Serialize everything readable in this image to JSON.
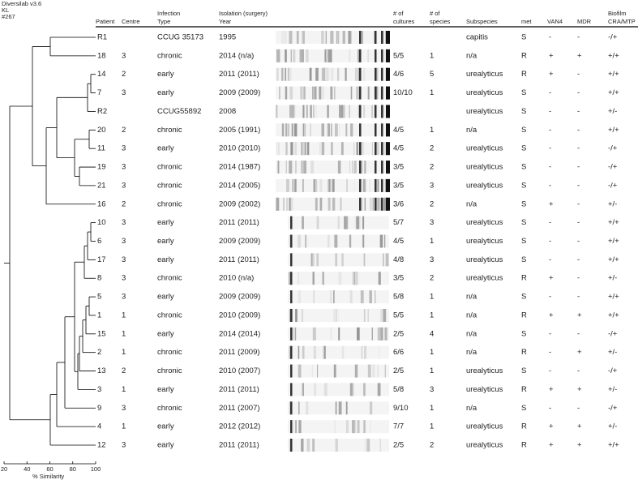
{
  "header": {
    "software": [
      "Diversilab v3.6",
      "KL",
      "#267"
    ],
    "columns": [
      [
        "Patient"
      ],
      [
        "Centre"
      ],
      [
        "Infection",
        "Type"
      ],
      [
        "Isolation (surgery)",
        "Year"
      ],
      [
        "# of",
        "cultures"
      ],
      [
        "# of",
        "species"
      ],
      [
        "Subspecies"
      ],
      [
        "met"
      ],
      [
        "VAN4"
      ],
      [
        "MDR"
      ],
      [
        "Biofilm",
        "CRA/MTP"
      ]
    ]
  },
  "table": {
    "rows": [
      [
        "R1",
        null,
        "CCUG 35173",
        "1995",
        null,
        null,
        "capitis",
        "S",
        "-",
        "-",
        "-/+"
      ],
      [
        "18",
        "3",
        "chronic",
        "2014 (n/a)",
        "5/5",
        "1",
        "n/a",
        "R",
        "+",
        "+",
        "+/+"
      ],
      [
        "14",
        "2",
        "early",
        "2011 (2011)",
        "4/6",
        "5",
        "urealyticus",
        "R",
        "+",
        "-",
        "+/+"
      ],
      [
        "7",
        "3",
        "early",
        "2009 (2009)",
        "10/10",
        "1",
        "urealyticus",
        "S",
        "-",
        "-",
        "+/+"
      ],
      [
        "R2",
        null,
        "CCUG55892",
        "2008",
        null,
        null,
        "urealyticus",
        "S",
        "-",
        "-",
        "+/-"
      ],
      [
        "20",
        "2",
        "chronic",
        "2005 (1991)",
        "4/5",
        "1",
        "n/a",
        "S",
        "-",
        "-",
        "+/+"
      ],
      [
        "11",
        "3",
        "early",
        "2010 (2010)",
        "4/5",
        "2",
        "urealyticus",
        "S",
        "-",
        "-",
        "-/+"
      ],
      [
        "19",
        "3",
        "chronic",
        "2014 (1987)",
        "3/5",
        "2",
        "urealyticus",
        "S",
        "-",
        "-",
        "-/+"
      ],
      [
        "21",
        "3",
        "chronic",
        "2014 (2005)",
        "3/5",
        "3",
        "urealyticus",
        "S",
        "-",
        "-",
        "-/+"
      ],
      [
        "16",
        "2",
        "chronic",
        "2009 (2002)",
        "3/6",
        "2",
        "n/a",
        "S",
        "+",
        "-",
        "+/-"
      ],
      [
        "10",
        "3",
        "early",
        "2011 (2011)",
        "5/7",
        "3",
        "urealyticus",
        "S",
        "-",
        "-",
        "+/+"
      ],
      [
        "6",
        "3",
        "early",
        "2009 (2009)",
        "4/5",
        "1",
        "urealyticus",
        "S",
        "-",
        "-",
        "+/+"
      ],
      [
        "17",
        "3",
        "early",
        "2011 (2011)",
        "4/8",
        "3",
        "urealyticus",
        "S",
        "-",
        "-",
        "+/+"
      ],
      [
        "8",
        "3",
        "chronic",
        "2010 (n/a)",
        "3/5",
        "2",
        "urealyticus",
        "R",
        "+",
        "-",
        "+/-"
      ],
      [
        "5",
        "3",
        "early",
        "2009 (2009)",
        "5/8",
        "1",
        "n/a",
        "S",
        "-",
        "-",
        "+/+"
      ],
      [
        "1",
        "1",
        "chronic",
        "2010 (2009)",
        "5/5",
        "1",
        "n/a",
        "R",
        "+",
        "+",
        "+/+"
      ],
      [
        "15",
        "1",
        "early",
        "2014 (2014)",
        "2/5",
        "4",
        "n/a",
        "S",
        "-",
        "-",
        "-/+"
      ],
      [
        "2",
        "1",
        "chronic",
        "2011 (2009)",
        "6/6",
        "1",
        "n/a",
        "R",
        "-",
        "+",
        "+/-"
      ],
      [
        "13",
        "2",
        "chronic",
        "2010 (2007)",
        "2/5",
        "1",
        "urealyticus",
        "S",
        "-",
        "-",
        "-/+"
      ],
      [
        "3",
        "1",
        "early",
        "2011 (2011)",
        "5/8",
        "3",
        "urealyticus",
        "R",
        "+",
        "+",
        "+/-"
      ],
      [
        "9",
        "3",
        "chronic",
        "2011 (2007)",
        "9/10",
        "1",
        "n/a",
        "S",
        "-",
        "-",
        "-/+"
      ],
      [
        "4",
        "1",
        "early",
        "2012 (2012)",
        "7/7",
        "1",
        "urealyticus",
        "R",
        "+",
        "+",
        "+/-"
      ],
      [
        "12",
        "3",
        "early",
        "2011 (2011)",
        "2/5",
        "2",
        "urealyticus",
        "R",
        "+",
        "+",
        "+/+"
      ]
    ]
  },
  "similarity_axis": {
    "label": "% Similarity",
    "ticks": [
      20,
      40,
      60,
      80,
      100
    ]
  }
}
